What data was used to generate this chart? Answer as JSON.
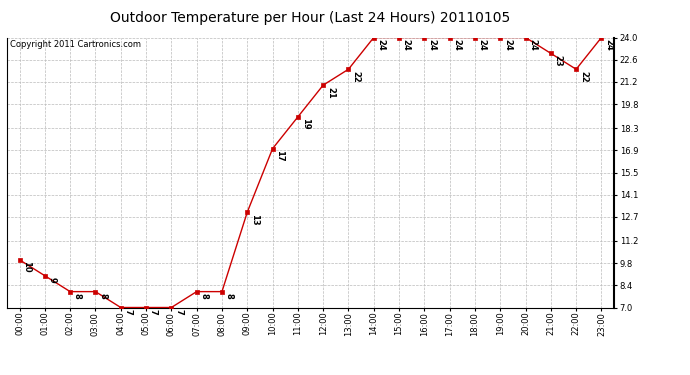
{
  "title": "Outdoor Temperature per Hour (Last 24 Hours) 20110105",
  "copyright_text": "Copyright 2011 Cartronics.com",
  "hours": [
    0,
    1,
    2,
    3,
    4,
    5,
    6,
    7,
    8,
    9,
    10,
    11,
    12,
    13,
    14,
    15,
    16,
    17,
    18,
    19,
    20,
    21,
    22,
    23
  ],
  "hour_labels": [
    "00:00",
    "01:00",
    "02:00",
    "03:00",
    "04:00",
    "05:00",
    "06:00",
    "07:00",
    "08:00",
    "09:00",
    "10:00",
    "11:00",
    "12:00",
    "13:00",
    "14:00",
    "15:00",
    "16:00",
    "17:00",
    "18:00",
    "19:00",
    "20:00",
    "21:00",
    "22:00",
    "23:00"
  ],
  "temperatures": [
    10,
    9,
    8,
    8,
    7,
    7,
    7,
    8,
    8,
    13,
    17,
    19,
    21,
    22,
    24,
    24,
    24,
    24,
    24,
    24,
    24,
    23,
    22,
    24
  ],
  "line_color": "#cc0000",
  "bg_color": "#ffffff",
  "grid_color": "#bbbbbb",
  "yticks": [
    7.0,
    8.4,
    9.8,
    11.2,
    12.7,
    14.1,
    15.5,
    16.9,
    18.3,
    19.8,
    21.2,
    22.6,
    24.0
  ],
  "ylim": [
    7.0,
    24.0
  ],
  "title_fontsize": 10,
  "copyright_fontsize": 6,
  "label_fontsize": 6,
  "tick_fontsize": 6
}
